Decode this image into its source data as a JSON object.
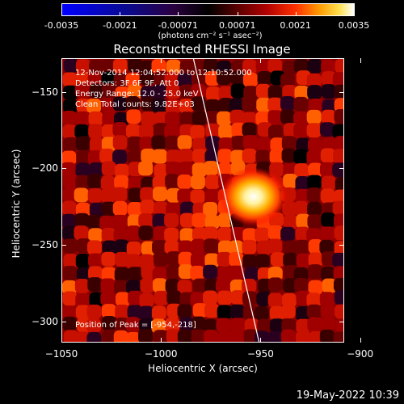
{
  "colorbar": {
    "tick_labels": [
      "-0.0035",
      "-0.0021",
      "-0.00071",
      "0.00071",
      "0.0021",
      "0.0035"
    ],
    "units": "(photons cm⁻² s⁻¹ asec⁻²)",
    "range": [
      -0.0035,
      0.0035
    ]
  },
  "plot": {
    "title": "Reconstructed RHESSI Image",
    "info_lines": [
      "12-Nov-2014 12:04:52.000 to 12:10:52.000",
      "Detectors: 3F 6F 9F, Att 0",
      "Energy Range: 12.0 - 25.0 keV",
      "Clean     Total counts: 9.82E+03"
    ],
    "peak_label": "Position of Peak = [-954,-218]"
  },
  "axes": {
    "xlabel": "Heliocentric X (arcsec)",
    "ylabel": "Heliocentric Y (arcsec)",
    "x_tick_labels": [
      "−1050",
      "−1000",
      "−950",
      "−900"
    ],
    "y_tick_labels": [
      "−150",
      "−200",
      "−250",
      "−300"
    ],
    "xlim": [
      -1050,
      -908
    ],
    "ylim": [
      -314,
      -128
    ]
  },
  "chart_data": {
    "type": "heatmap",
    "title": "Reconstructed RHESSI Image",
    "xlabel": "Heliocentric X (arcsec)",
    "ylabel": "Heliocentric Y (arcsec)",
    "x_ticks": [
      -1050,
      -1000,
      -950,
      -900
    ],
    "y_ticks": [
      -150,
      -200,
      -250,
      -300
    ],
    "xlim": [
      -1050,
      -908
    ],
    "ylim": [
      -314,
      -128
    ],
    "color_range": [
      -0.0035,
      0.0035
    ],
    "peak": {
      "x": -954,
      "y": -218
    },
    "limb_line": true
  },
  "footer": {
    "timestamp": "19-May-2022 10:39"
  }
}
